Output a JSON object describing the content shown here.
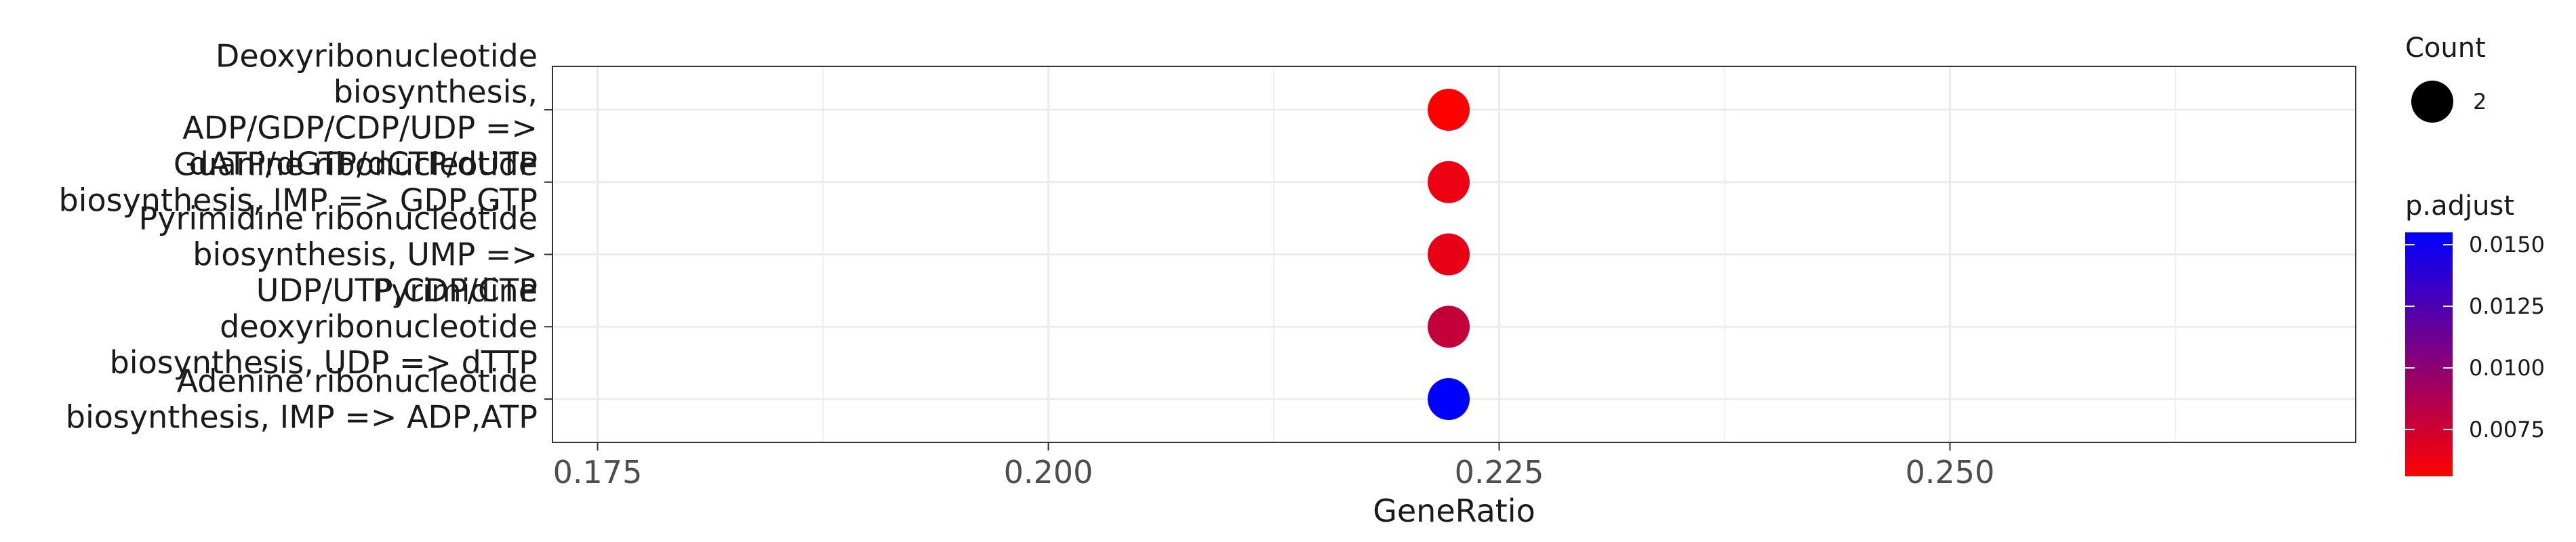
{
  "chart_data": {
    "type": "scatter",
    "xlabel": "GeneRatio",
    "ylabel": "",
    "xlim": [
      0.1725,
      0.2725
    ],
    "x_ticks": [
      "0.175",
      "0.200",
      "0.225",
      "0.250"
    ],
    "x_tick_values": [
      0.175,
      0.2,
      0.225,
      0.25
    ],
    "grid": true,
    "legend_position": "right",
    "categories": [
      "Deoxyribonucleotide biosynthesis, ADP/GDP/CDP/UDP => dATP/dGTP/dCTP/dUTP",
      "Guanine ribonucleotide biosynthesis, IMP => GDP,GTP",
      "Pyrimidine ribonucleotide biosynthesis, UMP => UDP/UTP,CDP/CTP",
      "Pyrimidine deoxyribonucleotide biosynthesis, UDP => dTTP",
      "Adenine ribonucleotide biosynthesis, IMP => ADP,ATP"
    ],
    "category_lines": [
      [
        "Deoxyribonucleotide",
        "biosynthesis,",
        "ADP/GDP/CDP/UDP =>",
        "dATP/dGTP/dCTP/dUTP"
      ],
      [
        "Guanine ribonucleotide",
        "biosynthesis, IMP => GDP,GTP"
      ],
      [
        "Pyrimidine ribonucleotide",
        "biosynthesis, UMP =>",
        "UDP/UTP,CDP/CTP"
      ],
      [
        "Pyrimidine",
        "deoxyribonucleotide",
        "biosynthesis, UDP => dTTP"
      ],
      [
        "Adenine ribonucleotide",
        "biosynthesis, IMP => ADP,ATP"
      ]
    ],
    "points": [
      {
        "gene_ratio": 0.2222,
        "count": 2,
        "p_adjust": 0.0056
      },
      {
        "gene_ratio": 0.2222,
        "count": 2,
        "p_adjust": 0.0063
      },
      {
        "gene_ratio": 0.2222,
        "count": 2,
        "p_adjust": 0.0065
      },
      {
        "gene_ratio": 0.2222,
        "count": 2,
        "p_adjust": 0.0079
      },
      {
        "gene_ratio": 0.2222,
        "count": 2,
        "p_adjust": 0.0155
      }
    ],
    "size_legend": {
      "title": "Count",
      "values": [
        "2"
      ]
    },
    "color_legend": {
      "title": "p.adjust",
      "range": [
        0.0056,
        0.0155
      ],
      "low_color": "#FF0000",
      "high_color": "#0000FF",
      "ticks": [
        "0.0075",
        "0.0100",
        "0.0125",
        "0.0150"
      ],
      "tick_values": [
        0.0075,
        0.01,
        0.0125,
        0.015
      ]
    }
  }
}
